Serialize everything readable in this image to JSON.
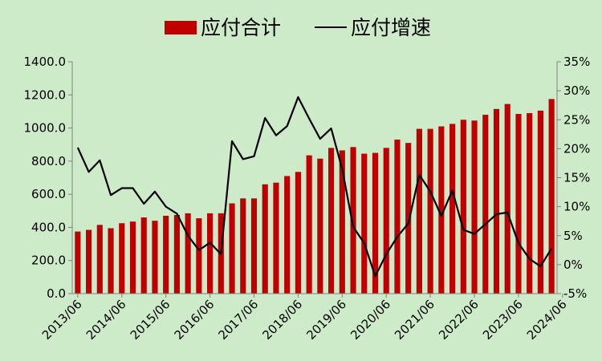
{
  "chart_data": {
    "type": "bar",
    "title": "",
    "legend": {
      "placement": "top",
      "items": [
        {
          "label": "应付合计",
          "kind": "bar",
          "color": "#c00000"
        },
        {
          "label": "应付增速",
          "kind": "line",
          "color": "#000000"
        }
      ]
    },
    "background_color": "#cdebc8",
    "x_tick_labels": [
      "2013/06",
      "2014/06",
      "2015/06",
      "2016/06",
      "2017/06",
      "2018/06",
      "2019/06",
      "2020/06",
      "2021/06",
      "2022/06",
      "2023/06",
      "2024/06"
    ],
    "left_axis": {
      "range": [
        0,
        1400
      ],
      "ticks": [
        "0.0",
        "200.0",
        "400.0",
        "600.0",
        "800.0",
        "1000.0",
        "1200.0",
        "1400.0"
      ]
    },
    "right_axis": {
      "range": [
        -5,
        35
      ],
      "ticks": [
        "-5%",
        "0%",
        "5%",
        "10%",
        "15%",
        "20%",
        "25%",
        "30%",
        "35%"
      ]
    },
    "grid": false,
    "series": [
      {
        "name": "应付合计",
        "type": "bar",
        "axis": "left",
        "color": "#c00000",
        "values": [
          375,
          385,
          415,
          395,
          425,
          435,
          460,
          440,
          470,
          475,
          485,
          455,
          485,
          485,
          545,
          575,
          575,
          660,
          670,
          710,
          735,
          835,
          815,
          880,
          865,
          885,
          845,
          850,
          880,
          930,
          910,
          995,
          995,
          1010,
          1025,
          1050,
          1045,
          1080,
          1115,
          1145,
          1085,
          1090,
          1105,
          1175
        ]
      },
      {
        "name": "应付增速",
        "type": "line",
        "axis": "right",
        "color": "#000000",
        "values": [
          20.2,
          16.0,
          18.0,
          12.0,
          13.2,
          13.2,
          10.5,
          12.6,
          10.0,
          8.8,
          5.0,
          2.5,
          3.8,
          1.8,
          21.3,
          18.2,
          18.7,
          25.3,
          22.3,
          23.9,
          28.9,
          25.2,
          21.7,
          23.5,
          16.5,
          6.5,
          3.7,
          -2.0,
          1.8,
          4.8,
          7.1,
          15.5,
          12.6,
          8.4,
          12.8,
          6.0,
          5.3,
          7.0,
          8.7,
          9.0,
          3.7,
          1.0,
          -0.3,
          2.8
        ]
      }
    ]
  }
}
